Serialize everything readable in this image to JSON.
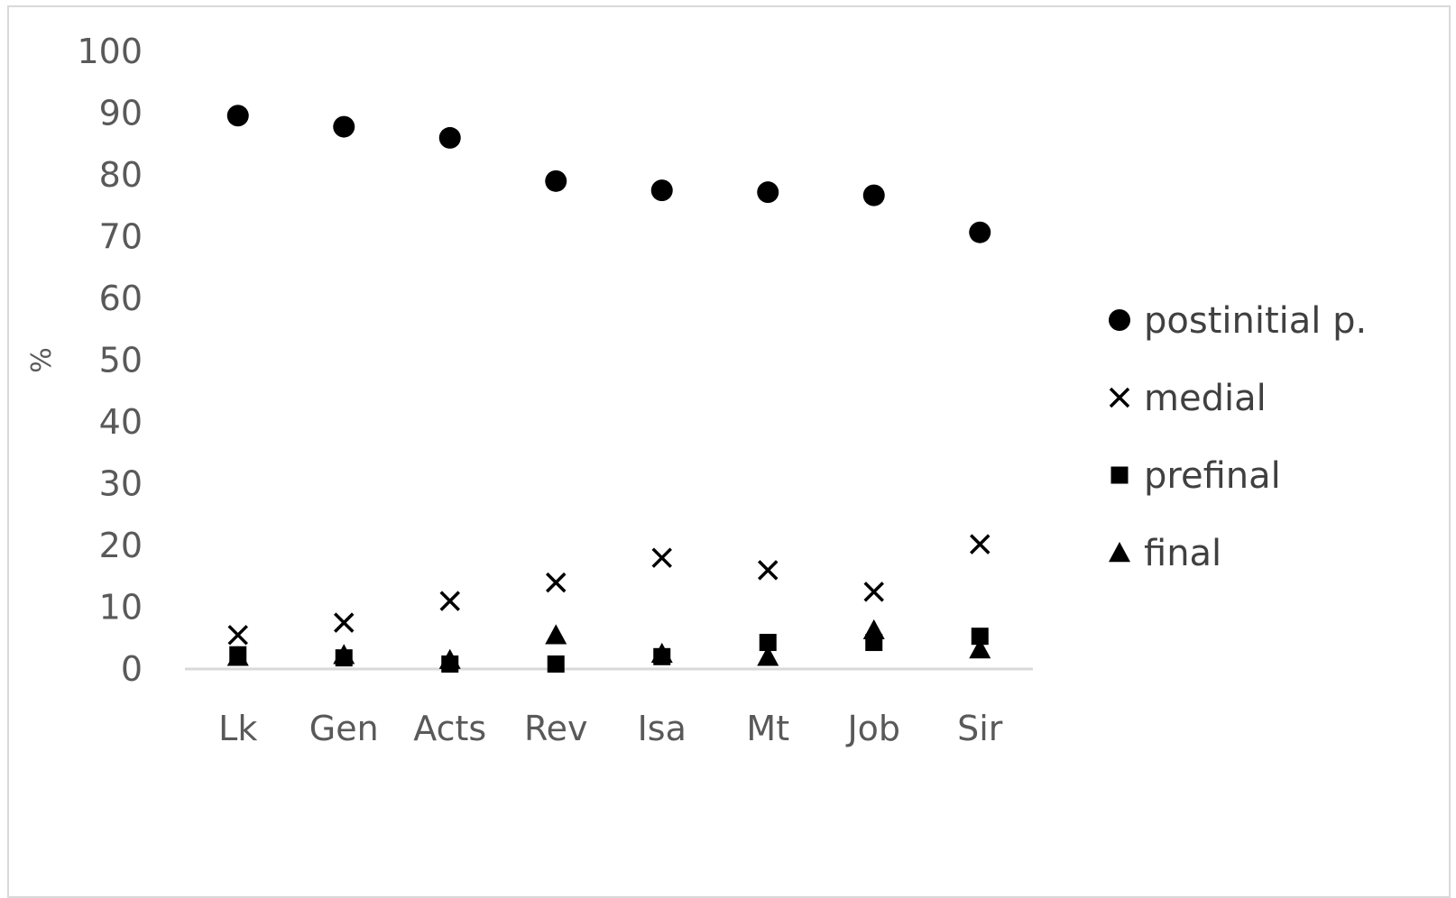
{
  "chart_data": {
    "type": "scatter",
    "title": "",
    "xlabel": "",
    "ylabel": "%",
    "ylim": [
      0,
      100
    ],
    "yticks": [
      0,
      10,
      20,
      30,
      40,
      50,
      60,
      70,
      80,
      90,
      100
    ],
    "categories": [
      "Lk",
      "Gen",
      "Acts",
      "Rev",
      "Isa",
      "Mt",
      "Job",
      "Sir"
    ],
    "grid": false,
    "legend_position": "right",
    "series": [
      {
        "name": "postinitial  p.",
        "marker": "circle",
        "color": "#000000",
        "values": [
          89.6,
          87.8,
          86.0,
          79.0,
          77.5,
          77.2,
          76.7,
          70.7
        ]
      },
      {
        "name": "medial",
        "marker": "x",
        "color": "#000000",
        "values": [
          5.5,
          7.5,
          11.0,
          14.0,
          18.0,
          16.0,
          12.5,
          20.2
        ]
      },
      {
        "name": "prefinal",
        "marker": "square",
        "color": "#000000",
        "values": [
          2.3,
          1.8,
          0.8,
          0.8,
          2.0,
          4.3,
          4.3,
          5.3
        ]
      },
      {
        "name": "final",
        "marker": "triangle",
        "color": "#000000",
        "values": [
          2.0,
          2.3,
          1.5,
          5.5,
          2.5,
          2.0,
          6.3,
          3.2
        ]
      }
    ]
  }
}
